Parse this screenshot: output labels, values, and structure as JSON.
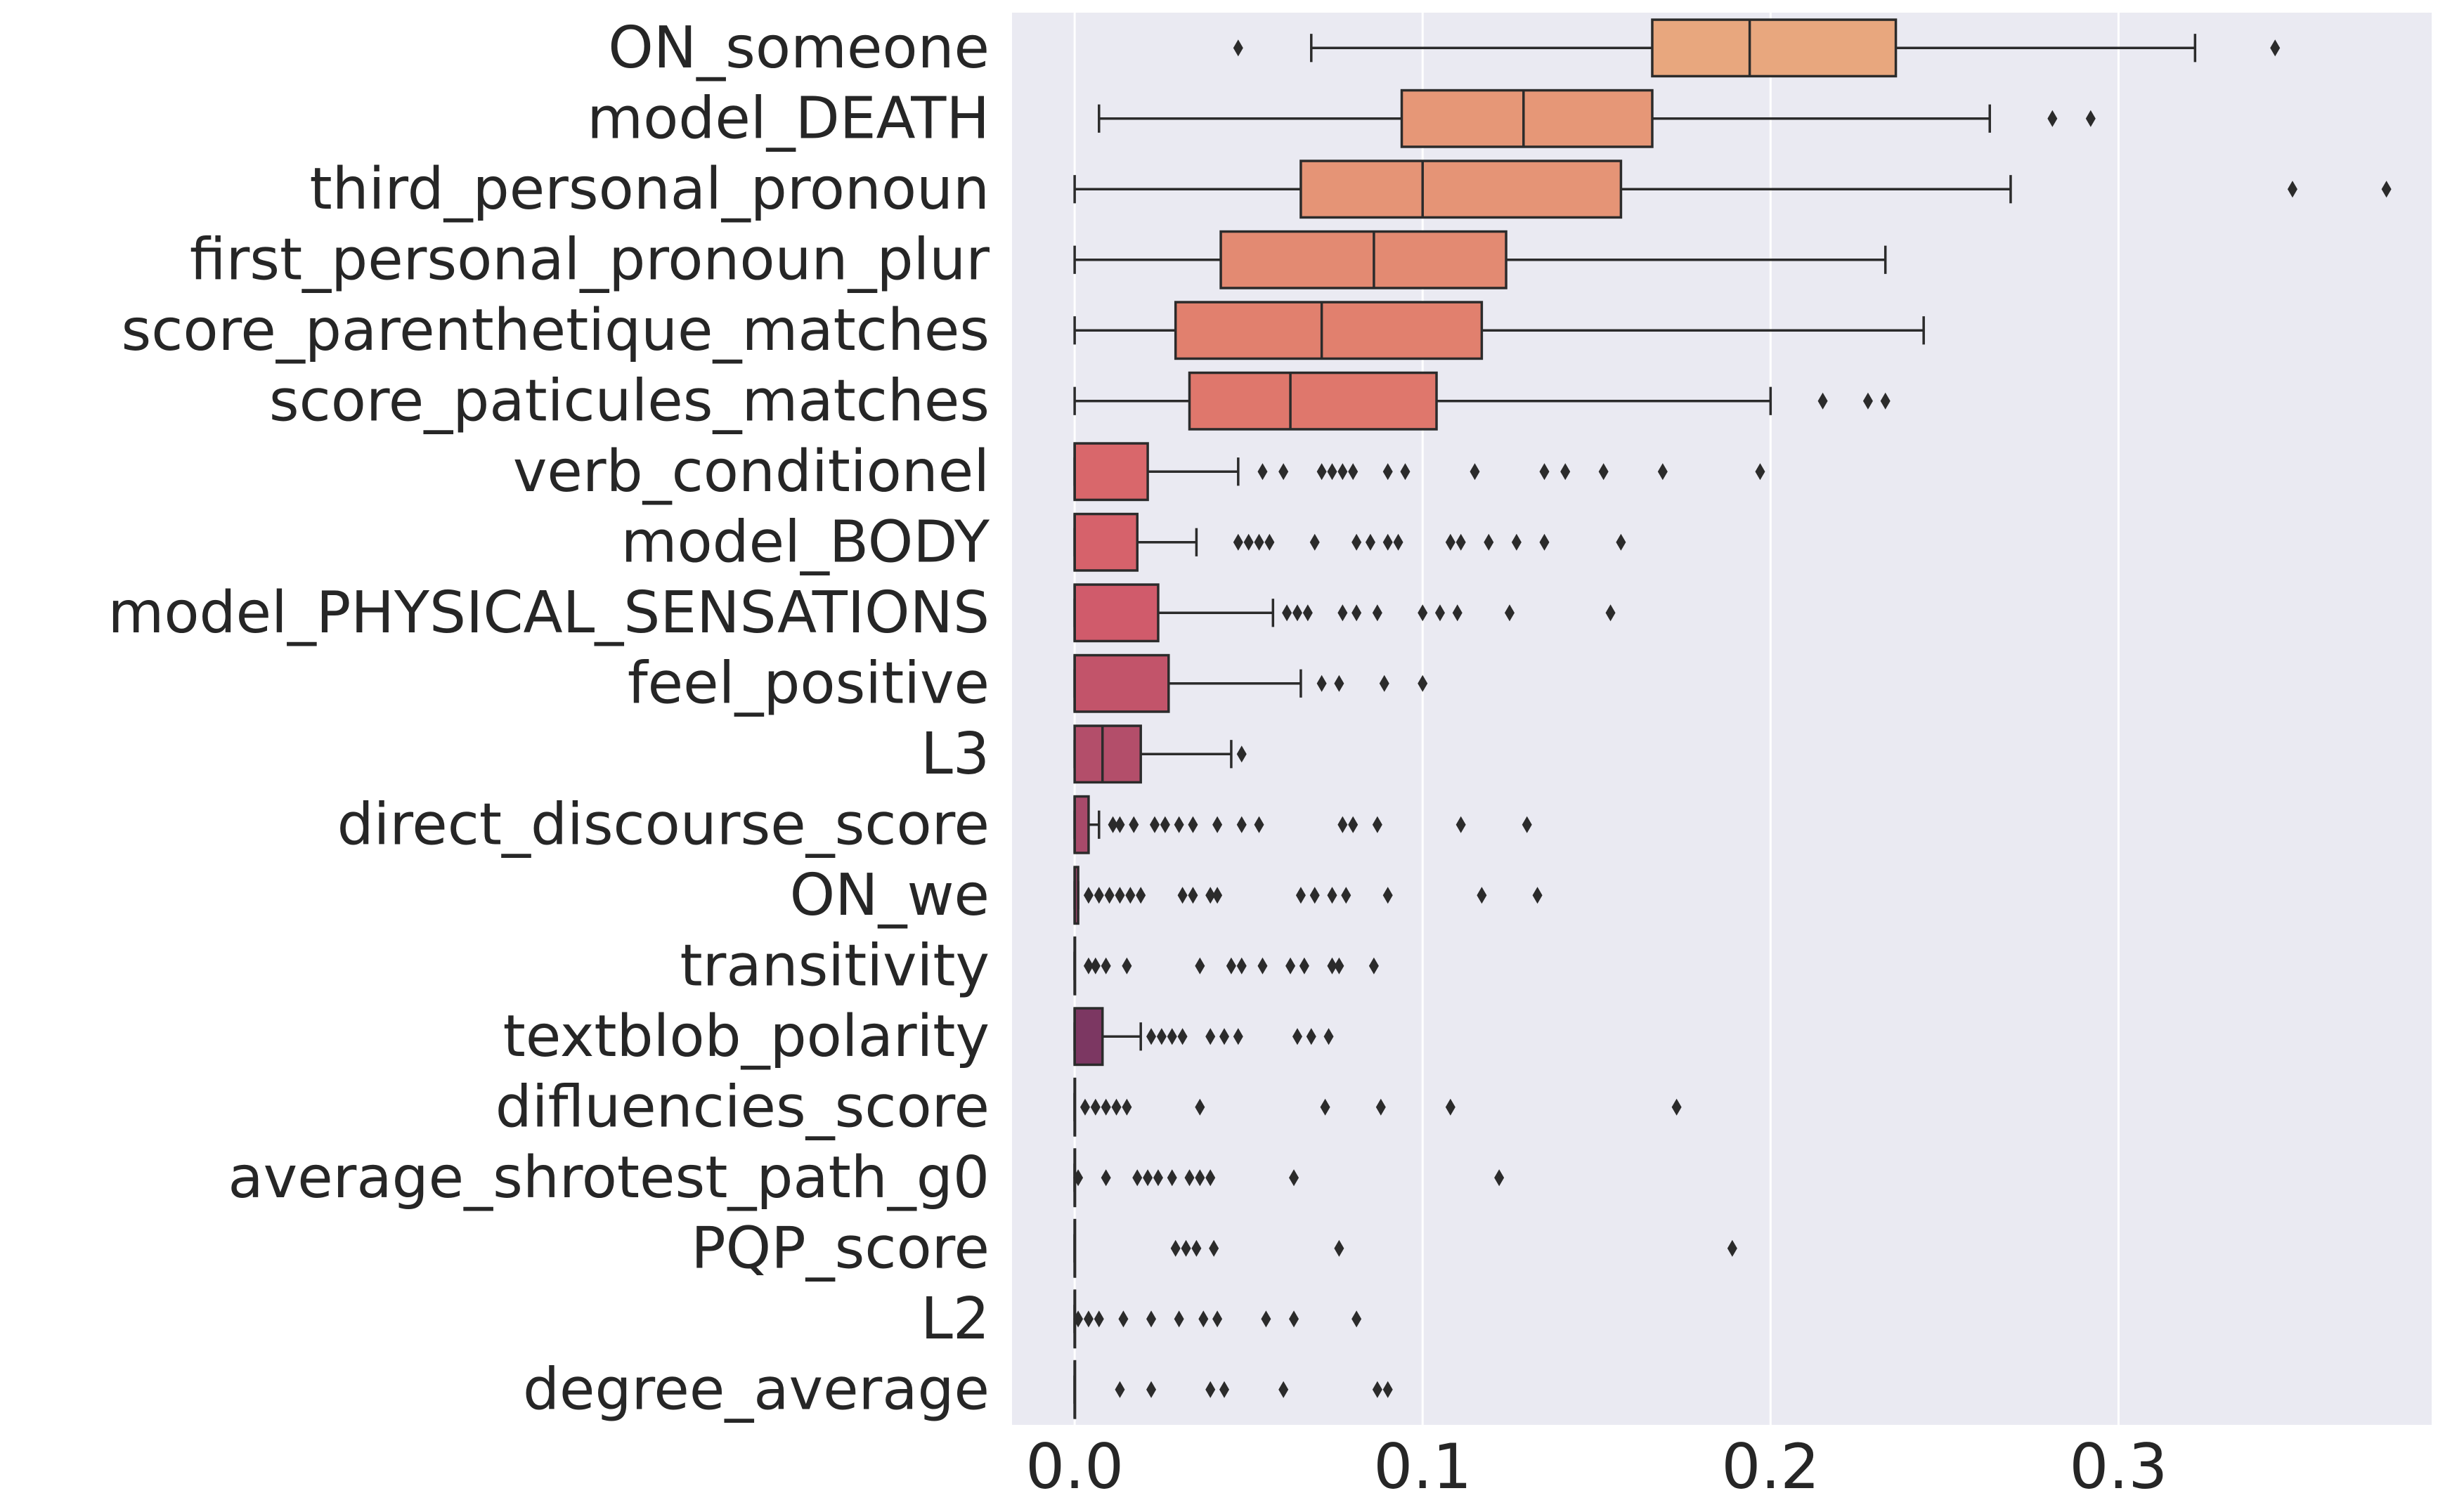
{
  "chart_data": {
    "type": "boxplot",
    "orientation": "horizontal",
    "xlim": [
      -0.018,
      0.39
    ],
    "xticks": [
      "0.0",
      "0.1",
      "0.2",
      "0.3"
    ],
    "xtick_values": [
      0.0,
      0.1,
      0.2,
      0.3
    ],
    "grid": "vertical",
    "palette": [
      "#e8a77e",
      "#e69777",
      "#e59476",
      "#e38a72",
      "#e1806e",
      "#df776c",
      "#d9676b",
      "#d6626b",
      "#d05b6b",
      "#c2546a",
      "#b34e6a",
      "#a84a6a",
      "#9b4569",
      "#8c3f66",
      "#7c3762",
      "#6e315e",
      "#5f2b59",
      "#512552",
      "#431f4a",
      "#361a42"
    ],
    "categories": [
      "ON_someone",
      "model_DEATH",
      "third_personal_pronoun",
      "first_personal_pronoun_plur",
      "score_parenthetique_matches",
      "score_paticules_matches",
      "verb_conditionel",
      "model_BODY",
      "model_PHYSICAL_SENSATIONS",
      "feel_positive",
      "L3",
      "direct_discourse_score",
      "ON_we",
      "transitivity",
      "textblob_polarity",
      "difluencies_score",
      "average_shrotest_path_g0",
      "PQP_score",
      "L2",
      "degree_average"
    ],
    "boxes": [
      {
        "whislo": 0.068,
        "q1": 0.166,
        "med": 0.194,
        "q3": 0.236,
        "whishi": 0.322,
        "fliers": [
          0.047,
          0.345
        ]
      },
      {
        "whislo": 0.007,
        "q1": 0.094,
        "med": 0.129,
        "q3": 0.166,
        "whishi": 0.263,
        "fliers": [
          0.281,
          0.292
        ]
      },
      {
        "whislo": 0.0,
        "q1": 0.065,
        "med": 0.1,
        "q3": 0.157,
        "whishi": 0.269,
        "fliers": [
          0.35,
          0.377
        ]
      },
      {
        "whislo": 0.0,
        "q1": 0.042,
        "med": 0.086,
        "q3": 0.124,
        "whishi": 0.233,
        "fliers": []
      },
      {
        "whislo": 0.0,
        "q1": 0.029,
        "med": 0.071,
        "q3": 0.117,
        "whishi": 0.244,
        "fliers": []
      },
      {
        "whislo": 0.0,
        "q1": 0.033,
        "med": 0.062,
        "q3": 0.104,
        "whishi": 0.2,
        "fliers": [
          0.215,
          0.228,
          0.233
        ]
      },
      {
        "whislo": 0.0,
        "q1": 0.0,
        "med": 0.0,
        "q3": 0.021,
        "whishi": 0.047,
        "fliers": [
          0.054,
          0.06,
          0.071,
          0.074,
          0.077,
          0.08,
          0.09,
          0.095,
          0.115,
          0.135,
          0.141,
          0.152,
          0.169,
          0.197
        ]
      },
      {
        "whislo": 0.0,
        "q1": 0.0,
        "med": 0.0,
        "q3": 0.018,
        "whishi": 0.035,
        "fliers": [
          0.047,
          0.05,
          0.053,
          0.056,
          0.069,
          0.081,
          0.085,
          0.09,
          0.093,
          0.108,
          0.111,
          0.119,
          0.127,
          0.135,
          0.157
        ]
      },
      {
        "whislo": 0.0,
        "q1": 0.0,
        "med": 0.0,
        "q3": 0.024,
        "whishi": 0.057,
        "fliers": [
          0.061,
          0.064,
          0.067,
          0.077,
          0.081,
          0.087,
          0.1,
          0.105,
          0.11,
          0.125,
          0.154
        ]
      },
      {
        "whislo": 0.0,
        "q1": 0.0,
        "med": 0.0,
        "q3": 0.027,
        "whishi": 0.065,
        "fliers": [
          0.071,
          0.076,
          0.089,
          0.1
        ]
      },
      {
        "whislo": 0.0,
        "q1": 0.0,
        "med": 0.008,
        "q3": 0.019,
        "whishi": 0.045,
        "fliers": [
          0.048
        ]
      },
      {
        "whislo": 0.0,
        "q1": 0.0,
        "med": 0.0,
        "q3": 0.004,
        "whishi": 0.007,
        "fliers": [
          0.011,
          0.013,
          0.017,
          0.023,
          0.026,
          0.03,
          0.034,
          0.041,
          0.048,
          0.053,
          0.077,
          0.08,
          0.087,
          0.111,
          0.13
        ]
      },
      {
        "whislo": 0.0,
        "q1": 0.0,
        "med": 0.0,
        "q3": 0.001,
        "whishi": 0.001,
        "fliers": [
          0.004,
          0.007,
          0.01,
          0.013,
          0.016,
          0.019,
          0.031,
          0.034,
          0.039,
          0.041,
          0.065,
          0.069,
          0.074,
          0.078,
          0.09,
          0.117,
          0.133
        ]
      },
      {
        "whislo": 0.0,
        "q1": 0.0,
        "med": 0.0,
        "q3": 0.0,
        "whishi": 0.0,
        "fliers": [
          0.004,
          0.006,
          0.009,
          0.015,
          0.036,
          0.045,
          0.048,
          0.054,
          0.062,
          0.066,
          0.074,
          0.076,
          0.086
        ]
      },
      {
        "whislo": 0.0,
        "q1": 0.0,
        "med": 0.0,
        "q3": 0.008,
        "whishi": 0.019,
        "fliers": [
          0.022,
          0.025,
          0.028,
          0.031,
          0.039,
          0.043,
          0.047,
          0.064,
          0.068,
          0.073
        ]
      },
      {
        "whislo": 0.0,
        "q1": 0.0,
        "med": 0.0,
        "q3": 0.0,
        "whishi": 0.0,
        "fliers": [
          0.003,
          0.006,
          0.009,
          0.012,
          0.015,
          0.036,
          0.072,
          0.088,
          0.108,
          0.173
        ]
      },
      {
        "whislo": 0.0,
        "q1": 0.0,
        "med": 0.0,
        "q3": 0.0,
        "whishi": 0.0,
        "fliers": [
          0.001,
          0.009,
          0.018,
          0.021,
          0.024,
          0.028,
          0.033,
          0.036,
          0.039,
          0.063,
          0.122
        ]
      },
      {
        "whislo": 0.0,
        "q1": 0.0,
        "med": 0.0,
        "q3": 0.0,
        "whishi": 0.0,
        "fliers": [
          0.029,
          0.032,
          0.035,
          0.04,
          0.076,
          0.189
        ]
      },
      {
        "whislo": 0.0,
        "q1": 0.0,
        "med": 0.0,
        "q3": 0.0,
        "whishi": 0.0,
        "fliers": [
          0.001,
          0.004,
          0.007,
          0.014,
          0.022,
          0.03,
          0.037,
          0.041,
          0.055,
          0.063,
          0.081
        ]
      },
      {
        "whislo": 0.0,
        "q1": 0.0,
        "med": 0.0,
        "q3": 0.0,
        "whishi": 0.0,
        "fliers": [
          0.013,
          0.022,
          0.039,
          0.043,
          0.06,
          0.087,
          0.09
        ]
      }
    ]
  }
}
